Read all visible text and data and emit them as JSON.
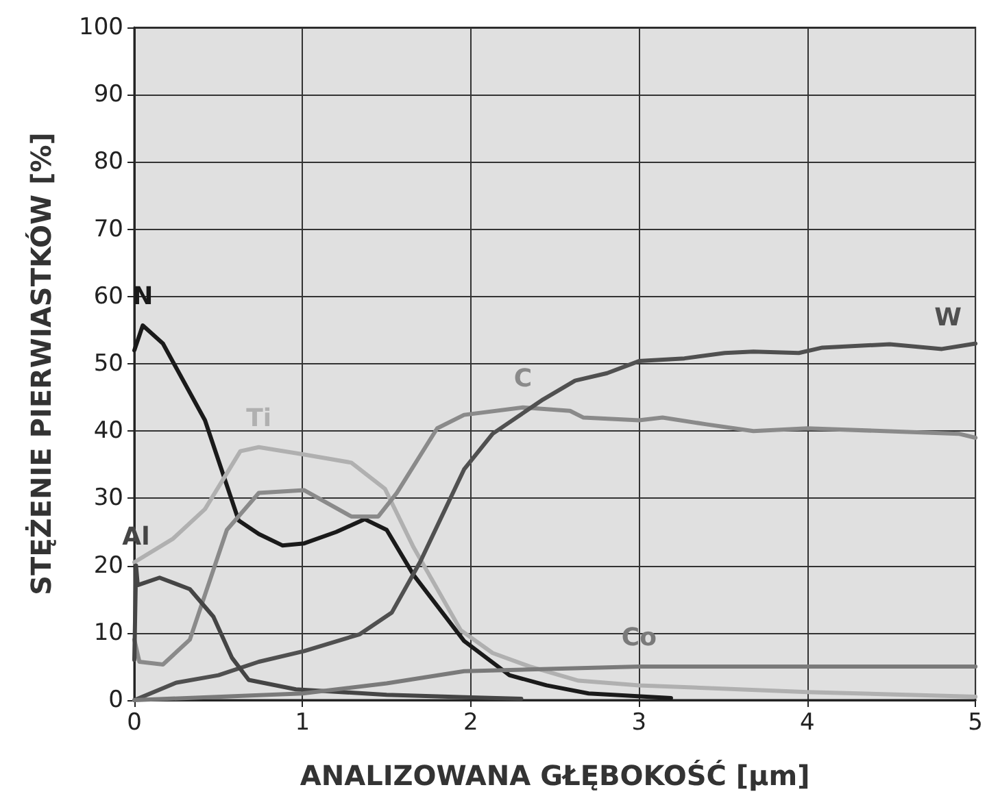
{
  "chart_data": {
    "type": "line",
    "xlabel": "ANALIZOWANA GŁĘBOKOŚĆ [µm]",
    "ylabel": "STĘŻENIE PIERWIASTKÓW [%]",
    "xlim": [
      0,
      5
    ],
    "xticks": [
      0,
      1,
      2,
      3,
      4,
      5
    ],
    "ylim": [
      0,
      100
    ],
    "yticks": [
      0,
      10,
      20,
      30,
      40,
      50,
      60,
      70,
      80,
      90,
      100
    ],
    "grid": true,
    "legend": false,
    "marker": "none",
    "line_style": "solid",
    "series": [
      {
        "name": "N",
        "color": "#1a1a1a",
        "x": [
          0,
          0.05,
          0.17,
          0.42,
          0.62,
          0.74,
          0.88,
          1.01,
          1.2,
          1.37,
          1.5,
          1.66,
          1.96,
          2.23,
          2.45,
          2.7,
          3.19
        ],
        "values": [
          52,
          55.7,
          53,
          41.6,
          26.7,
          24.7,
          23,
          23.3,
          25,
          26.9,
          25.3,
          18.6,
          8.8,
          3.7,
          2.2,
          1,
          0.3
        ]
      },
      {
        "name": "Ti",
        "color": "#b0b0b0",
        "x": [
          0,
          0.23,
          0.42,
          0.63,
          0.74,
          1.01,
          1.29,
          1.49,
          1.66,
          1.94,
          2.13,
          2.35,
          2.64,
          3,
          4,
          5
        ],
        "values": [
          20.5,
          24,
          28.4,
          37,
          37.6,
          36.5,
          35.3,
          31.4,
          22.7,
          10.4,
          7,
          5,
          2.9,
          2.2,
          1.2,
          0.5
        ]
      },
      {
        "name": "C",
        "color": "#8a8a8a",
        "x": [
          0,
          0.03,
          0.17,
          0.33,
          0.55,
          0.74,
          1.01,
          1.29,
          1.45,
          1.56,
          1.8,
          1.96,
          2.31,
          2.59,
          2.67,
          3,
          3.14,
          3.4,
          3.68,
          4,
          4.9,
          5
        ],
        "values": [
          9,
          5.7,
          5.3,
          9,
          25.3,
          30.8,
          31.2,
          27.3,
          27.3,
          30.8,
          40.4,
          42.4,
          43.5,
          43,
          42,
          41.6,
          42,
          41,
          40,
          40.4,
          39.6,
          39
        ]
      },
      {
        "name": "W",
        "color": "#505050",
        "x": [
          0,
          0.25,
          0.5,
          0.74,
          1.01,
          1.34,
          1.53,
          1.7,
          1.96,
          2.13,
          2.43,
          2.62,
          2.81,
          3,
          3.27,
          3.51,
          3.68,
          3.95,
          4.09,
          4.49,
          4.8,
          5
        ],
        "values": [
          0,
          2.6,
          3.7,
          5.7,
          7.3,
          9.8,
          13,
          20.6,
          34.3,
          39.6,
          44.7,
          47.5,
          48.6,
          50.4,
          50.8,
          51.6,
          51.8,
          51.6,
          52.4,
          52.9,
          52.2,
          53
        ]
      },
      {
        "name": "Al",
        "color": "#454545",
        "x": [
          0,
          0.01,
          0.02,
          0.15,
          0.33,
          0.47,
          0.58,
          0.68,
          0.96,
          1.5,
          2,
          2.3
        ],
        "values": [
          6,
          20,
          17.1,
          18.2,
          16.5,
          12.4,
          6.3,
          3,
          1.6,
          0.8,
          0.4,
          0.2
        ]
      },
      {
        "name": "Co",
        "color": "#7a7a7a",
        "x": [
          0,
          1,
          1.5,
          1.96,
          3,
          4,
          5
        ],
        "values": [
          0,
          1,
          2.5,
          4.3,
          5,
          5,
          5
        ]
      }
    ]
  }
}
